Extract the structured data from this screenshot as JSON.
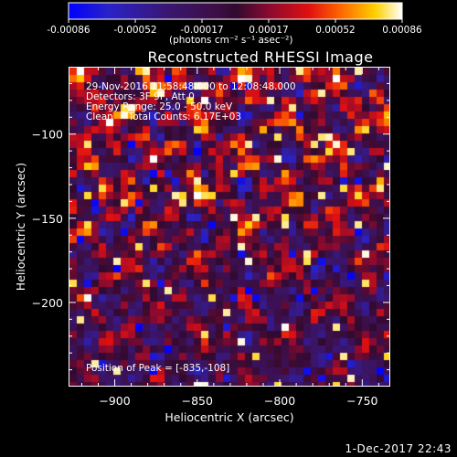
{
  "colorbar": {
    "ticks": [
      "-0.00086",
      "-0.00052",
      "-0.00017",
      "0.00017",
      "0.00052",
      "0.00086"
    ],
    "unit_label": "(photons cm⁻² s⁻¹ asec⁻²)",
    "range": [
      -0.00086,
      0.00086
    ],
    "colormap": "blue-black-red-yellow-white"
  },
  "chart_data": {
    "type": "heatmap",
    "title": "Reconstructed RHESSI Image",
    "xlabel": "Heliocentric X (arcsec)",
    "ylabel": "Heliocentric Y (arcsec)",
    "xlim": [
      -928,
      -733
    ],
    "ylim": [
      -250,
      -60
    ],
    "x_ticks": [
      -900,
      -850,
      -800,
      -750
    ],
    "y_ticks": [
      -100,
      -150,
      -200
    ],
    "x_tick_labels": [
      "−900",
      "−850",
      "−800",
      "−750"
    ],
    "y_tick_labels": [
      "−100",
      "−150",
      "−200"
    ],
    "grid": false,
    "peak": [
      -835,
      -108
    ]
  },
  "overlay": {
    "line1": "29-Nov-2016 11:58:48.000 to 12:08:48.000",
    "line2": "Detectors: 3F 9F, Att 0",
    "line3": "Energy Range: 25.0 - 50.0 keV",
    "line4": "Clean     Total Counts: 6.17E+03",
    "peak_label": "Position of Peak = [-835,-108]"
  },
  "footer": {
    "date": "1-Dec-2017 22:43"
  }
}
